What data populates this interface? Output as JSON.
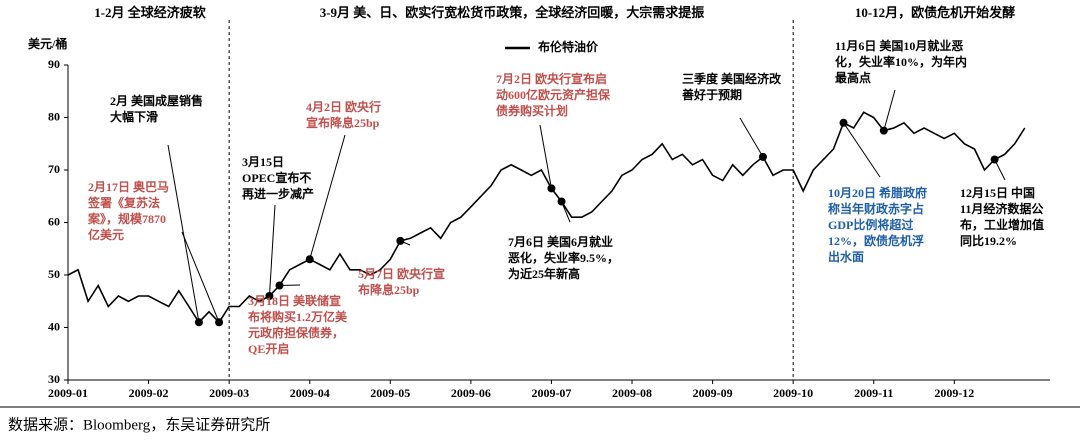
{
  "chart_data": {
    "type": "line",
    "headers": [
      "1-2月 全球经济疲软",
      "3-9月 美、日、欧实行宽松货币政策，全球经济回暖，大宗需求提振",
      "10-12月，欧债危机开始发酵"
    ],
    "y_label": "美元/桶",
    "source": "数据来源：Bloomberg，东吴证券研究所",
    "categories": [
      "2009-01",
      null,
      null,
      null,
      null,
      null,
      null,
      null,
      "2009-02",
      null,
      null,
      null,
      null,
      null,
      null,
      null,
      "2009-03",
      null,
      null,
      null,
      null,
      null,
      null,
      null,
      "2009-04",
      null,
      null,
      null,
      null,
      null,
      null,
      null,
      "2009-05",
      null,
      null,
      null,
      null,
      null,
      null,
      null,
      "2009-06",
      null,
      null,
      null,
      null,
      null,
      null,
      null,
      "2009-07",
      null,
      null,
      null,
      null,
      null,
      null,
      null,
      "2009-08",
      null,
      null,
      null,
      null,
      null,
      null,
      null,
      "2009-09",
      null,
      null,
      null,
      null,
      null,
      null,
      null,
      "2009-10",
      null,
      null,
      null,
      null,
      null,
      null,
      null,
      "2009-11",
      null,
      null,
      null,
      null,
      null,
      null,
      null,
      "2009-12",
      null,
      null,
      null,
      null,
      null,
      null,
      null
    ],
    "series": [
      {
        "name": "布伦特油价",
        "color": "#000000",
        "values": [
          50,
          51,
          45,
          48,
          44,
          46,
          45,
          46,
          46,
          45,
          44,
          47,
          44,
          41,
          43,
          41,
          44,
          44,
          46,
          45,
          46,
          48,
          51,
          52,
          53,
          52,
          51,
          54,
          51,
          51,
          50,
          51,
          53,
          56.5,
          57,
          58,
          59,
          57,
          60,
          61,
          63,
          65,
          67,
          70,
          71,
          70,
          69,
          70,
          66.5,
          64,
          61,
          61,
          62,
          64,
          66,
          69,
          70,
          72,
          73,
          75,
          72,
          73,
          71,
          72,
          69,
          68,
          71,
          69,
          71,
          72.5,
          69,
          70,
          70,
          66,
          70,
          72,
          74,
          79,
          78,
          81,
          80,
          77.5,
          78,
          79,
          77,
          78,
          77,
          76,
          77,
          75,
          74,
          70,
          72,
          73,
          75,
          78
        ]
      }
    ],
    "ylim": [
      30,
      90
    ],
    "yticks": [
      30,
      40,
      50,
      60,
      70,
      80,
      90
    ],
    "annotations": [
      {
        "lines": [
          "2月  美国成屋销售",
          "大幅下滑"
        ],
        "color": "#000000"
      },
      {
        "lines": [
          "2月17日  奥巴马",
          "签署《复苏法",
          "案》，规模7870",
          "亿美元"
        ],
        "color": "#c0504d"
      },
      {
        "lines": [
          "3月15日",
          "OPEC宣布不",
          "再进一步减产"
        ],
        "color": "#000000"
      },
      {
        "lines": [
          "4月2日  欧央行",
          "宣布降息25bp"
        ],
        "color": "#c0504d"
      },
      {
        "lines": [
          "3月18日  美联储宣",
          "布将购买1.2万亿美",
          "元政府担保债券，",
          "QE开启"
        ],
        "color": "#c0504d"
      },
      {
        "lines": [
          "5月7日  欧央行宣",
          "布降息25bp"
        ],
        "color": "#c0504d"
      },
      {
        "lines": [
          "7月2日  欧央行宣布启",
          "动600亿欧元资产担保",
          "债券购买计划"
        ],
        "color": "#c0504d"
      },
      {
        "lines": [
          "7月6日  美国6月就业",
          "恶化，失业率9.5%，",
          "为近25年新高"
        ],
        "color": "#000000"
      },
      {
        "lines": [
          "三季度  美国经济改",
          "善好于预期"
        ],
        "color": "#000000"
      },
      {
        "lines": [
          "11月6日  美国10月就业恶",
          "化，失业率10%，为年内",
          "最高点"
        ],
        "color": "#000000"
      },
      {
        "lines": [
          "10月20日  希腊政府",
          "称当年财政赤字占",
          "GDP比例将超过",
          "12%，欧债危机浮",
          "出水面"
        ],
        "color": "#1f5fa8"
      },
      {
        "lines": [
          "12月15日  中国",
          "11月经济数据公",
          "布，工业增加值",
          "同比19.2%"
        ],
        "color": "#000000"
      }
    ]
  }
}
